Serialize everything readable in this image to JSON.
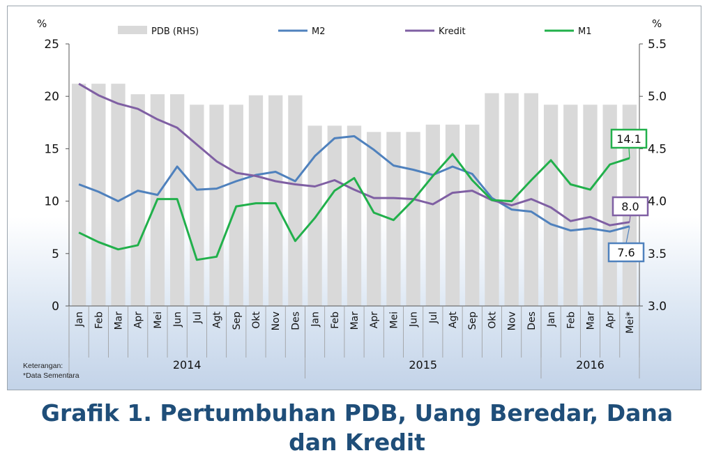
{
  "caption": {
    "line1": "Grafik 1.  Pertumbuhan PDB, Uang Beredar, Dana",
    "line2": "dan Kredit"
  },
  "note": {
    "line1": "Keterangan:",
    "line2": "*Data Sementara"
  },
  "colors": {
    "PDB": "#d9d9d9",
    "M2": "#4f81bd",
    "Kredit": "#7f5fa3",
    "M1": "#21b04b",
    "axis": "#555555"
  },
  "chart_data": {
    "type": "bar+line",
    "grid": false,
    "legend_position": "top",
    "left_axis": {
      "unit_label": "%",
      "ylim": [
        0,
        25
      ],
      "ticks": [
        0,
        5,
        10,
        15,
        20,
        25
      ]
    },
    "right_axis": {
      "unit_label": "%",
      "ylim": [
        3.0,
        5.5
      ],
      "ticks": [
        "3.0",
        "3.5",
        "4.0",
        "4.5",
        "5.0",
        "5.5"
      ]
    },
    "categories": [
      "Jan",
      "Feb",
      "Mar",
      "Apr",
      "Mei",
      "Jun",
      "Jul",
      "Agt",
      "Sep",
      "Okt",
      "Nov",
      "Des",
      "Jan",
      "Feb",
      "Mar",
      "Apr",
      "Mei",
      "Jun",
      "Jul",
      "Agt",
      "Sep",
      "Okt",
      "Nov",
      "Des",
      "Jan",
      "Feb",
      "Mar",
      "Apr",
      "Mei*"
    ],
    "years": [
      {
        "label": "2014",
        "count": 12
      },
      {
        "label": "2015",
        "count": 12
      },
      {
        "label": "2016",
        "count": 5
      }
    ],
    "bars": {
      "name": "PDB (RHS)",
      "axis": "right",
      "values": [
        5.12,
        5.12,
        5.12,
        5.02,
        5.02,
        5.02,
        4.92,
        4.92,
        4.92,
        5.01,
        5.01,
        5.01,
        4.72,
        4.72,
        4.72,
        4.66,
        4.66,
        4.66,
        4.73,
        4.73,
        4.73,
        5.03,
        5.03,
        5.03,
        4.92,
        4.92,
        4.92,
        4.92,
        4.92
      ]
    },
    "series": [
      {
        "name": "M2",
        "axis": "left",
        "values": [
          11.6,
          10.9,
          10.0,
          11.0,
          10.6,
          13.3,
          11.1,
          11.2,
          11.9,
          12.5,
          12.8,
          11.9,
          14.3,
          16.0,
          16.2,
          14.9,
          13.4,
          13.0,
          12.5,
          13.3,
          12.6,
          10.3,
          9.2,
          9.0,
          7.8,
          7.2,
          7.4,
          7.1,
          7.6
        ]
      },
      {
        "name": "Kredit",
        "axis": "left",
        "values": [
          21.2,
          20.1,
          19.3,
          18.8,
          17.8,
          17.0,
          15.4,
          13.8,
          12.7,
          12.4,
          11.9,
          11.6,
          11.4,
          12.0,
          11.1,
          10.3,
          10.3,
          10.2,
          9.7,
          10.8,
          11.0,
          10.1,
          9.6,
          10.2,
          9.4,
          8.1,
          8.5,
          7.7,
          8.0
        ]
      },
      {
        "name": "M1",
        "axis": "left",
        "values": [
          7.0,
          6.1,
          5.4,
          5.8,
          10.2,
          10.2,
          4.4,
          4.7,
          9.5,
          9.8,
          9.8,
          6.2,
          8.4,
          11.0,
          12.2,
          8.9,
          8.2,
          10.1,
          12.4,
          14.5,
          12.0,
          10.1,
          10.0,
          12.0,
          13.9,
          11.6,
          11.1,
          13.5,
          14.1
        ]
      }
    ],
    "annotations": [
      {
        "series": "M1",
        "text": "14.1"
      },
      {
        "series": "Kredit",
        "text": "8.0"
      },
      {
        "series": "M2",
        "text": "7.6"
      }
    ]
  }
}
